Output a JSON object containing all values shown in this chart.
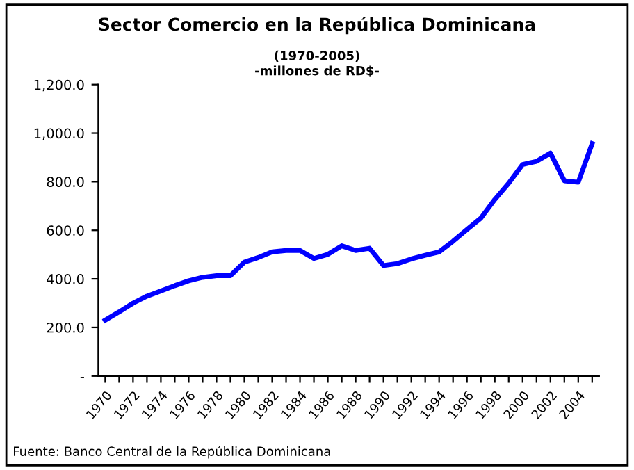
{
  "chart_data": {
    "type": "line",
    "title": "Sector Comercio en la República Dominicana",
    "subtitle": "(1970-2005)\n-millones de RD$-",
    "categories": [
      "1970",
      null,
      "1972",
      null,
      "1974",
      null,
      "1976",
      null,
      "1978",
      null,
      "1980",
      null,
      "1982",
      null,
      "1984",
      null,
      "1986",
      null,
      "1988",
      null,
      "1990",
      null,
      "1992",
      null,
      "1994",
      null,
      "1996",
      null,
      "1998",
      null,
      "2000",
      null,
      "2002",
      null,
      "2004",
      null
    ],
    "series": [
      {
        "color": "#0000ff",
        "values": [
          230,
          264,
          300,
          329,
          350,
          372,
          392,
          406,
          413,
          413,
          469,
          488,
          511,
          517,
          517,
          484,
          501,
          536,
          517,
          526,
          455,
          463,
          482,
          497,
          511,
          555,
          603,
          650,
          727,
          794,
          871,
          884,
          918,
          804,
          798,
          957
        ]
      }
    ],
    "ylim": [
      0,
      1200
    ],
    "yticks": [
      {
        "value": 0,
        "label": "-"
      },
      {
        "value": 200,
        "label": "200.0"
      },
      {
        "value": 400,
        "label": "400.0"
      },
      {
        "value": 600,
        "label": "600.0"
      },
      {
        "value": 800,
        "label": "800.0"
      },
      {
        "value": 1000,
        "label": "1,000.0"
      },
      {
        "value": 1200,
        "label": "1,200.0"
      }
    ],
    "grid": false,
    "legend": false,
    "marker": "none",
    "line_style": "solid",
    "annotations": [
      "Fuente: Banco Central de la República Dominicana"
    ]
  }
}
